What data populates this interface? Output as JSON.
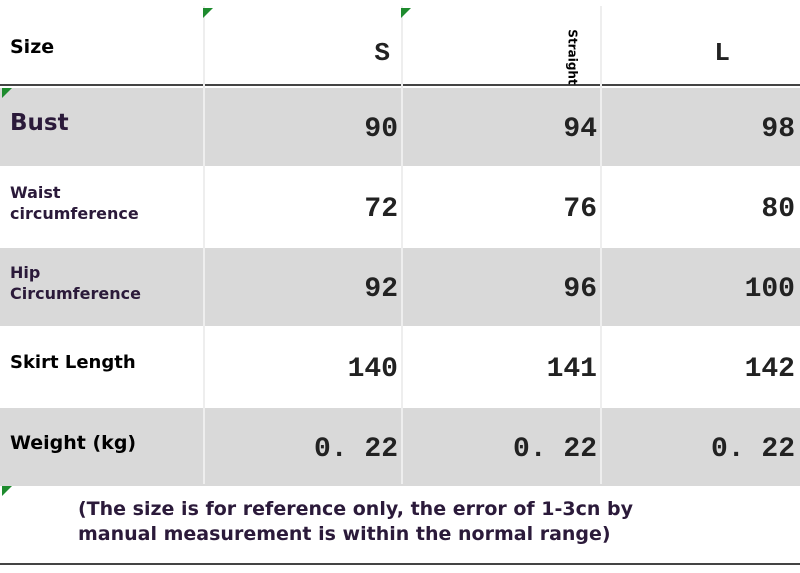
{
  "header": [
    "Size",
    "S",
    "Straight",
    "L"
  ],
  "rows": [
    [
      "Bust",
      "90",
      "94",
      "98"
    ],
    [
      "Waist circumference",
      "72",
      "76",
      "80"
    ],
    [
      "Hip Circumference",
      "92",
      "96",
      "100"
    ],
    [
      "Skirt Length",
      "140",
      "141",
      "142"
    ],
    [
      "Weight (kg)",
      "0. 22",
      "0. 22",
      "0. 22"
    ]
  ],
  "note": "(The size is for reference only, the error of 1-3cn by manual measurement is within the normal range)"
}
